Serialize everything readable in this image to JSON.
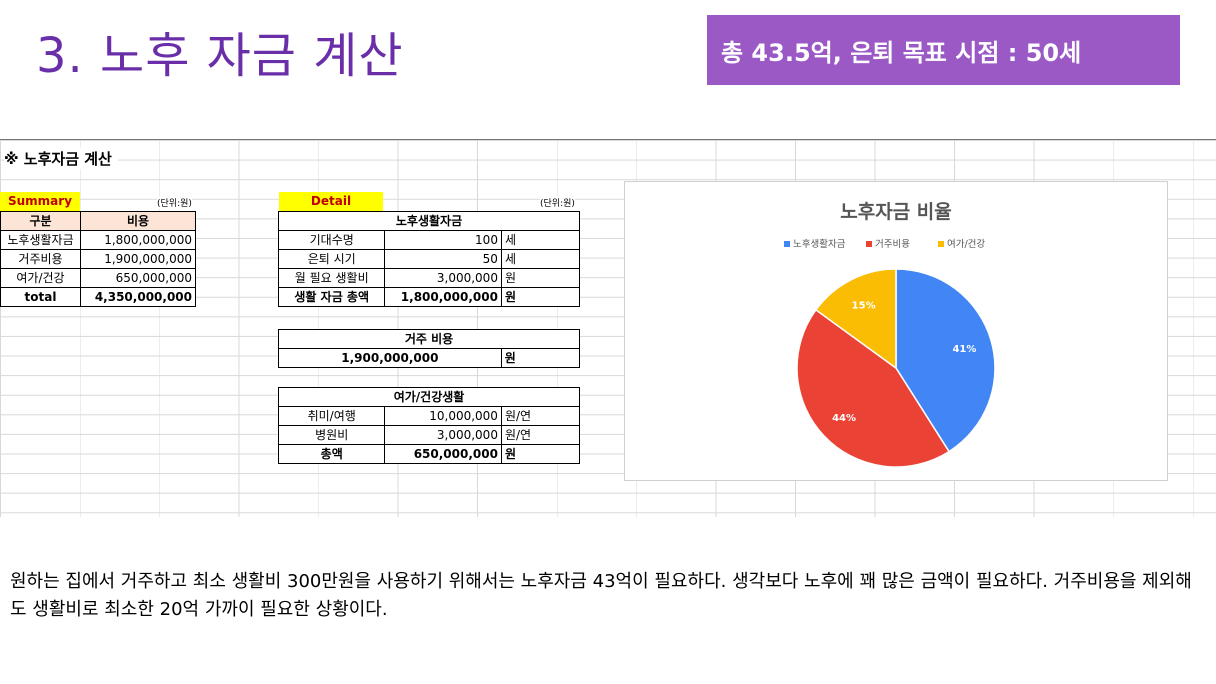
{
  "slide": {
    "title": "3. 노후 자금 계산",
    "badge": "총 43.5억, 은퇴 목표 시점  : 50세"
  },
  "sheet": {
    "title": "※ 노후자금 계산",
    "summary": {
      "tag": "Summary",
      "unit": "(단위:원)",
      "header": [
        "구분",
        "비용"
      ],
      "rows": [
        {
          "label": "노후생활자금",
          "value": "1,800,000,000"
        },
        {
          "label": "거주비용",
          "value": "1,900,000,000"
        },
        {
          "label": "여가/건강",
          "value": "650,000,000"
        }
      ],
      "total": {
        "label": "total",
        "value": "4,350,000,000"
      }
    },
    "detail": {
      "tag": "Detail",
      "unit": "(단위:원)",
      "living": {
        "title": "노후생활자금",
        "rows": [
          {
            "label": "기대수명",
            "value": "100",
            "unit": "세"
          },
          {
            "label": "은퇴 시기",
            "value": "50",
            "unit": "세"
          },
          {
            "label": "월 필요 생활비",
            "value": "3,000,000",
            "unit": "원"
          }
        ],
        "total": {
          "label": "생활 자금 총액",
          "value": "1,800,000,000",
          "unit": "원"
        }
      },
      "housing": {
        "title": "거주 비용",
        "value": "1,900,000,000",
        "unit": "원"
      },
      "leisure": {
        "title": "여가/건강생활",
        "rows": [
          {
            "label": "취미/여행",
            "value": "10,000,000",
            "unit": "원/연"
          },
          {
            "label": "병원비",
            "value": "3,000,000",
            "unit": "원/연"
          }
        ],
        "total": {
          "label": "총액",
          "value": "650,000,000",
          "unit": "원"
        }
      }
    }
  },
  "chart_data": {
    "type": "pie",
    "title": "노후자금 비율",
    "legend_position": "top",
    "categories": [
      "노후생활자금",
      "거주비용",
      "여가/건강"
    ],
    "values": [
      41,
      44,
      15
    ],
    "labels": [
      "41%",
      "44%",
      "15%"
    ],
    "colors": [
      "#4285f4",
      "#ea4335",
      "#fbbc04"
    ]
  },
  "body_text": "원하는 집에서 거주하고 최소 생활비 300만원을 사용하기 위해서는 노후자금 43억이 필요하다. 생각보다 노후에 꽤 많은 금액이 필요하다. 거주비용을 제외해도 생활비로 최소한 20억 가까이 필요한 상황이다."
}
